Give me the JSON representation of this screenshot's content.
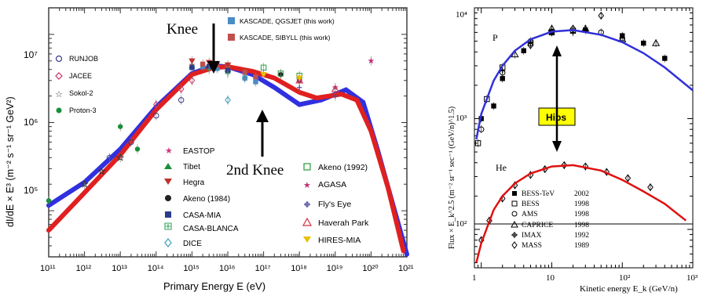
{
  "chart_data": [
    {
      "type": "scatter",
      "title": "",
      "xlabel": "Primary Energy E (eV)",
      "ylabel": "dI/dE × E³  (m⁻² s⁻¹ sr⁻¹ GeV²)",
      "x_scale": "log",
      "y_scale": "log",
      "xlim": [
        100000000000.0,
        1e+21
      ],
      "ylim": [
        30000.0,
        20000000.0
      ],
      "x_ticks": [
        "10¹¹",
        "10¹²",
        "10¹³",
        "10¹⁴",
        "10¹⁵",
        "10¹⁶",
        "10¹⁷",
        "10¹⁸",
        "10¹⁹",
        "10²⁰",
        "10²¹"
      ],
      "y_ticks": [
        "10⁵",
        "10⁶",
        "10⁷"
      ],
      "annotations": [
        {
          "text": "Knee",
          "x": 3000000000000000.0,
          "y": 4000000.0
        },
        {
          "text": "2nd Knee",
          "x": 5e+16,
          "y": 1500000.0
        }
      ],
      "series": [
        {
          "name": "KASCADE, QGSJET (this work)",
          "color": "#4a8cc4",
          "marker": "square",
          "points": [
            [
              2000000000000000.0,
              4300000.0
            ],
            [
              5000000000000000.0,
              4100000.0
            ],
            [
              1e+16,
              3800000.0
            ],
            [
              3e+16,
              3200000.0
            ],
            [
              6e+16,
              2900000.0
            ]
          ]
        },
        {
          "name": "KASCADE, SIBYLL (this work)",
          "color": "#c0504d",
          "marker": "square",
          "points": [
            [
              2000000000000000.0,
              4600000.0
            ],
            [
              5000000000000000.0,
              4500000.0
            ],
            [
              1e+16,
              4300000.0
            ],
            [
              3e+16,
              3700000.0
            ],
            [
              6e+16,
              3300000.0
            ]
          ]
        },
        {
          "name": "RUNJOB",
          "color": "#3a3a8c",
          "marker": "circle-open",
          "points": [
            [
              5000000000000.0,
              400000.0
            ],
            [
              20000000000000.0,
              600000.0
            ],
            [
              100000000000000.0,
              1200000.0
            ],
            [
              500000000000000.0,
              1800000.0
            ]
          ]
        },
        {
          "name": "JACEE",
          "color": "#d03060",
          "marker": "diamond-open",
          "points": [
            [
              100000000000000.0,
              1600000.0
            ],
            [
              500000000000000.0,
              2400000.0
            ],
            [
              1000000000000000.0,
              3000000.0
            ]
          ]
        },
        {
          "name": "Sokol-2",
          "color": "#333333",
          "marker": "star-open",
          "points": [
            [
              1000000000000.0,
              200000.0
            ],
            [
              3000000000000.0,
              280000.0
            ],
            [
              10000000000000.0,
              400000.0
            ]
          ]
        },
        {
          "name": "Proton-3",
          "color": "#1a8f3a",
          "marker": "circle",
          "points": [
            [
              100000000000.0,
              130000.0
            ],
            [
              10000000000000.0,
              900000.0
            ],
            [
              30000000000000.0,
              500000.0
            ]
          ]
        },
        {
          "name": "EASTOP",
          "color": "#d4307a",
          "marker": "star",
          "points": [
            [
              1000000000000000.0,
              4500000.0
            ],
            [
              3000000000000000.0,
              4200000.0
            ],
            [
              1e+16,
              3800000.0
            ]
          ]
        },
        {
          "name": "Tibet",
          "color": "#1a8f3a",
          "marker": "triangle",
          "points": [
            [
              1000000000000000.0,
              4400000.0
            ],
            [
              3000000000000000.0,
              4600000.0
            ],
            [
              1e+16,
              4000000.0
            ]
          ]
        },
        {
          "name": "Hegra",
          "color": "#c0302a",
          "marker": "triangle-down",
          "points": [
            [
              1000000000000000.0,
              5000000.0
            ],
            [
              3000000000000000.0,
              4800000.0
            ],
            [
              1e+16,
              4500000.0
            ]
          ]
        },
        {
          "name": "Akeno (1984)",
          "color": "#222222",
          "marker": "circle",
          "points": [
            [
              3e+17,
              3500000.0
            ],
            [
              1e+18,
              3000000.0
            ]
          ]
        },
        {
          "name": "CASA-MIA",
          "color": "#2c3a8c",
          "marker": "square",
          "points": [
            [
              1000000000000000.0,
              4200000.0
            ],
            [
              3000000000000000.0,
              4300000.0
            ],
            [
              1e+16,
              3900000.0
            ]
          ]
        },
        {
          "name": "CASA-BLANCA",
          "color": "#3aa060",
          "marker": "cross-open",
          "points": [
            [
              3000000000000000.0,
              4000000.0
            ],
            [
              1e+16,
              3600000.0
            ]
          ]
        },
        {
          "name": "DICE",
          "color": "#3aa0c0",
          "marker": "diamond-open",
          "points": [
            [
              1e+16,
              1800000.0
            ],
            [
              3e+16,
              3200000.0
            ]
          ]
        },
        {
          "name": "Akeno (1992)",
          "color": "#2a9a3a",
          "marker": "square-open",
          "points": [
            [
              1e+17,
              4200000.0
            ],
            [
              3e+17,
              3600000.0
            ],
            [
              1e+18,
              3400000.0
            ]
          ]
        },
        {
          "name": "AGASA",
          "color": "#c0307a",
          "marker": "star",
          "points": [
            [
              1e+18,
              3000000.0
            ],
            [
              1e+19,
              2500000.0
            ],
            [
              1e+20,
              5000000.0
            ]
          ]
        },
        {
          "name": "Fly's Eye",
          "color": "#4a4a9a",
          "marker": "cross-open",
          "points": [
            [
              1e+18,
              2500000.0
            ],
            [
              1e+19,
              2000000.0
            ]
          ]
        },
        {
          "name": "Haverah Park",
          "color": "#d03040",
          "marker": "triangle-open",
          "points": [
            [
              1e+18,
              3000000.0
            ],
            [
              1e+19,
              2400000.0
            ]
          ]
        },
        {
          "name": "HIRES-MIA",
          "color": "#e8c000",
          "marker": "triangle-down",
          "points": [
            [
              1e+17,
              3500000.0
            ],
            [
              1e+18,
              3200000.0
            ]
          ]
        }
      ]
    },
    {
      "type": "scatter",
      "title": "",
      "xlabel": "Kinetic energy  E_k (GeV/n)",
      "ylabel": "Flux × E_k^2.5  (m⁻² sr⁻¹ sec⁻¹ (GeV/n)^1.5)",
      "x_scale": "log",
      "y_scale": "log",
      "xlim": [
        0.8,
        1000
      ],
      "ylim": [
        45,
        10000
      ],
      "x_ticks": [
        "1",
        "10",
        "10²",
        "10³"
      ],
      "y_ticks": [
        "10²",
        "10³",
        "10⁴"
      ],
      "annotations": [
        {
          "text": "P",
          "x": 1.4,
          "y": 5500
        },
        {
          "text": "He",
          "x": 1.5,
          "y": 340
        },
        {
          "text": "Hips",
          "x": 12,
          "y": 1600
        }
      ],
      "series": [
        {
          "name": "BESS-TeV",
          "year": "2002",
          "marker": "square",
          "points": [
            [
              1.0,
              1000
            ],
            [
              1.5,
              1300
            ],
            [
              2,
              2300
            ],
            [
              4,
              4100
            ],
            [
              10,
              6000
            ],
            [
              30,
              6300
            ],
            [
              100,
              5600
            ],
            [
              200,
              4800
            ],
            [
              400,
              3500
            ]
          ]
        },
        {
          "name": "BESS",
          "year": "1998",
          "marker": "square-open",
          "points": [
            [
              0.9,
              600
            ],
            [
              1.2,
              1500
            ],
            [
              2,
              2900
            ],
            [
              5,
              4800
            ],
            [
              10,
              6000
            ],
            [
              20,
              6200
            ]
          ]
        },
        {
          "name": "AMS",
          "year": "1998",
          "marker": "circle-open",
          "points": [
            [
              1,
              800
            ],
            [
              2,
              2600
            ],
            [
              5,
              5000
            ],
            [
              10,
              6100
            ],
            [
              50,
              6000
            ],
            [
              100,
              5300
            ]
          ]
        },
        {
          "name": "CAPRICE",
          "year": "1998",
          "marker": "triangle-open",
          "points": [
            [
              3,
              3800
            ],
            [
              10,
              6500
            ],
            [
              30,
              6500
            ],
            [
              100,
              5200
            ],
            [
              300,
              4800
            ]
          ]
        },
        {
          "name": "IMAX",
          "year": "1992",
          "marker": "cross-open",
          "points": [
            [
              2,
              2700
            ],
            [
              5,
              4900
            ],
            [
              20,
              6000
            ]
          ]
        },
        {
          "name": "MASS",
          "year": "1989",
          "marker": "diamond-open",
          "points": [
            [
              5,
              4600
            ],
            [
              20,
              6500
            ],
            [
              50,
              8500
            ]
          ]
        }
      ]
    }
  ]
}
